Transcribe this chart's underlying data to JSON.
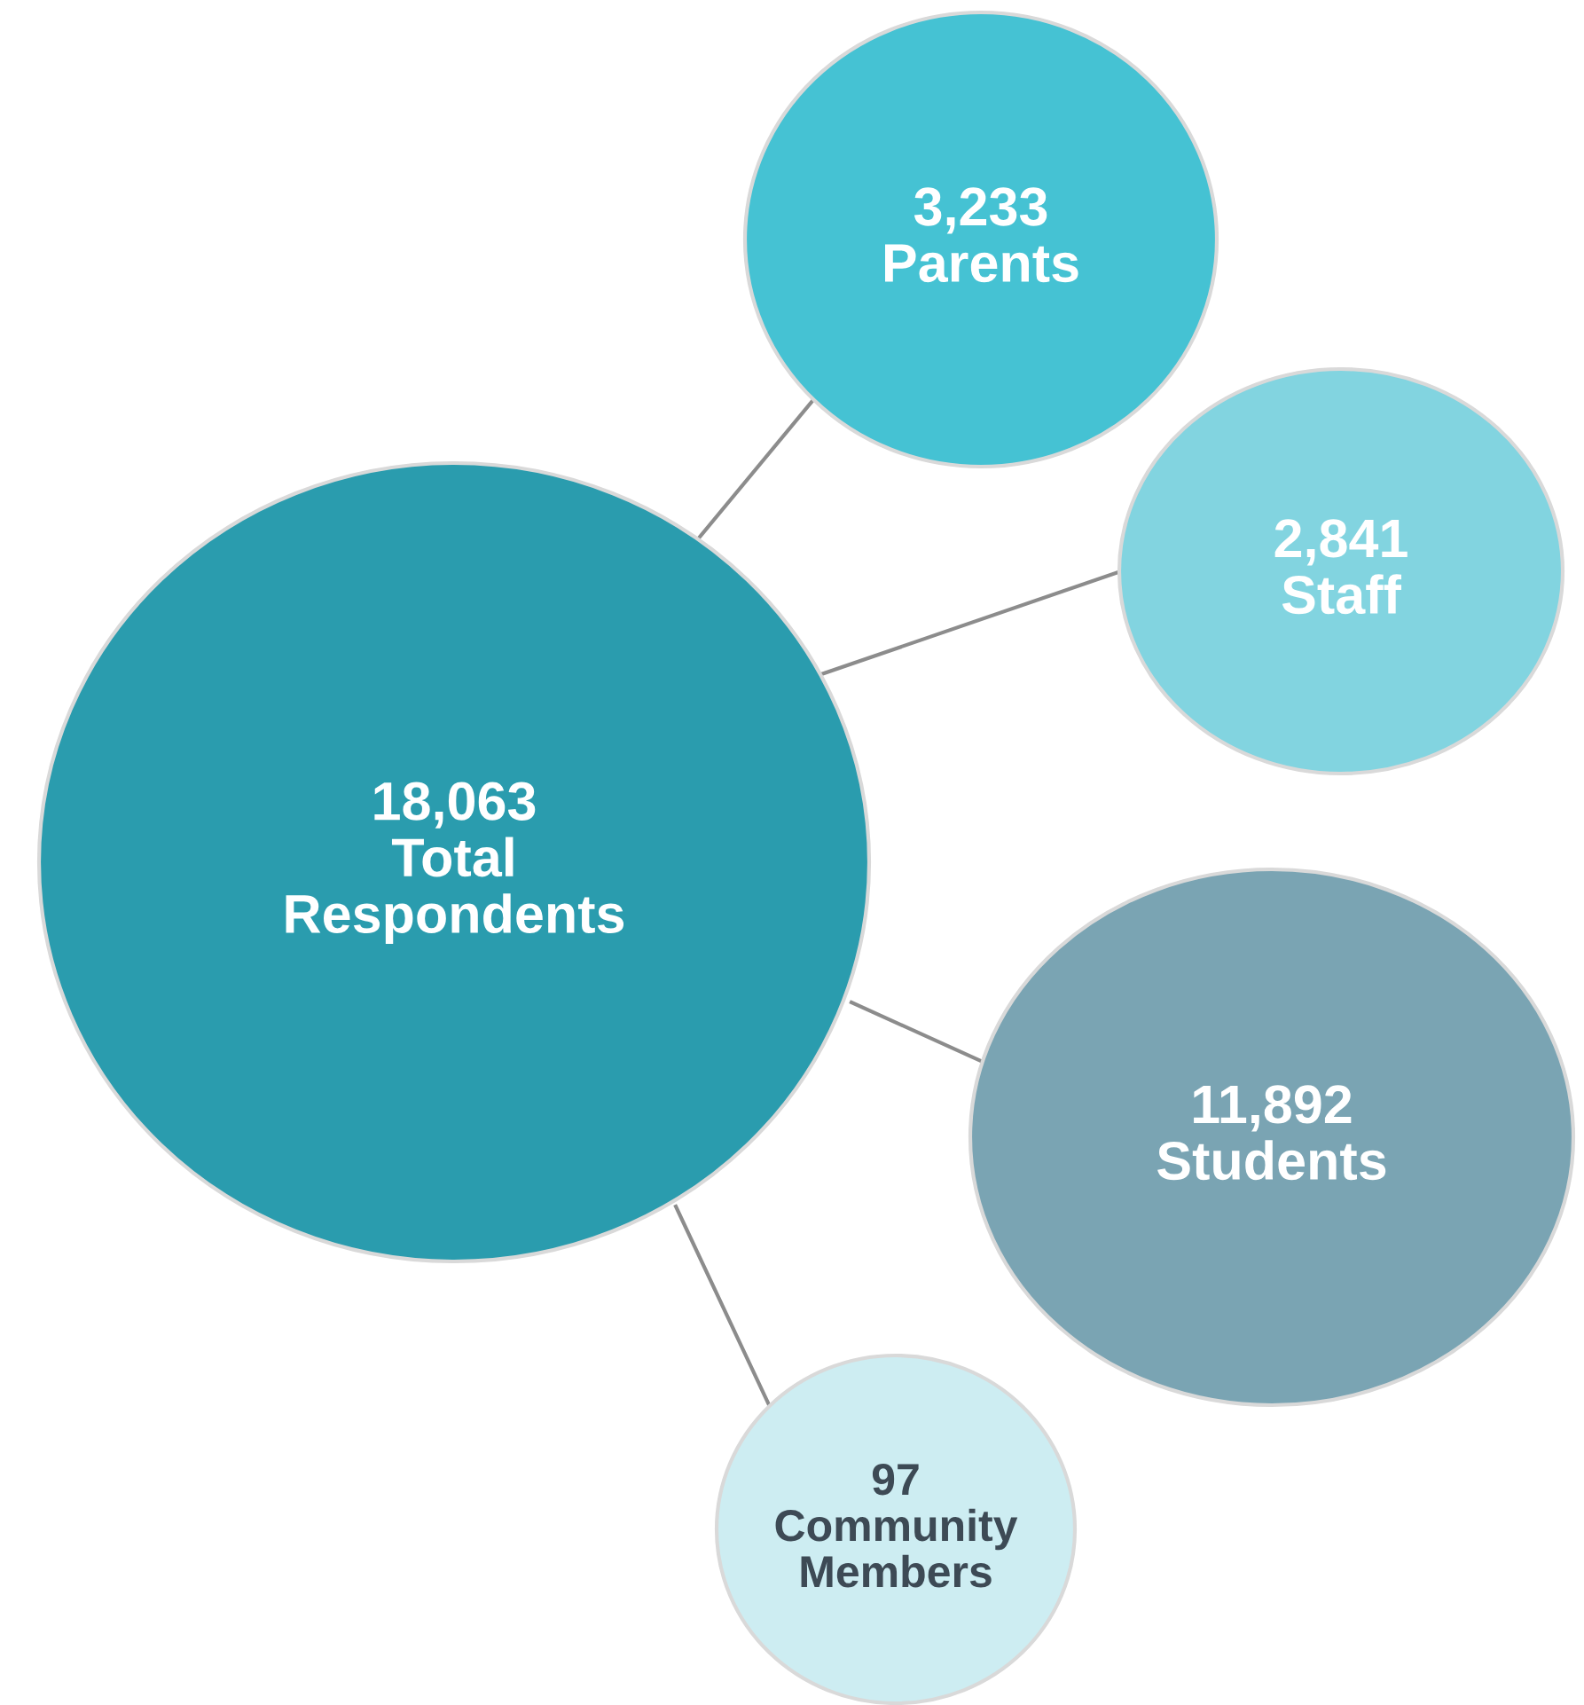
{
  "chart_data": {
    "type": "other",
    "categories": [
      "Total Respondents",
      "Parents",
      "Staff",
      "Students",
      "Community Members"
    ],
    "values": [
      18063,
      3233,
      2841,
      11892,
      97
    ],
    "value_labels": [
      "18,063",
      "3,233",
      "2,841",
      "11,892",
      "97"
    ],
    "colors": [
      "#2a9cae",
      "#45c2d3",
      "#82d4e0",
      "#7aa4b3",
      "#cdedf2"
    ],
    "data_labels": true
  }
}
